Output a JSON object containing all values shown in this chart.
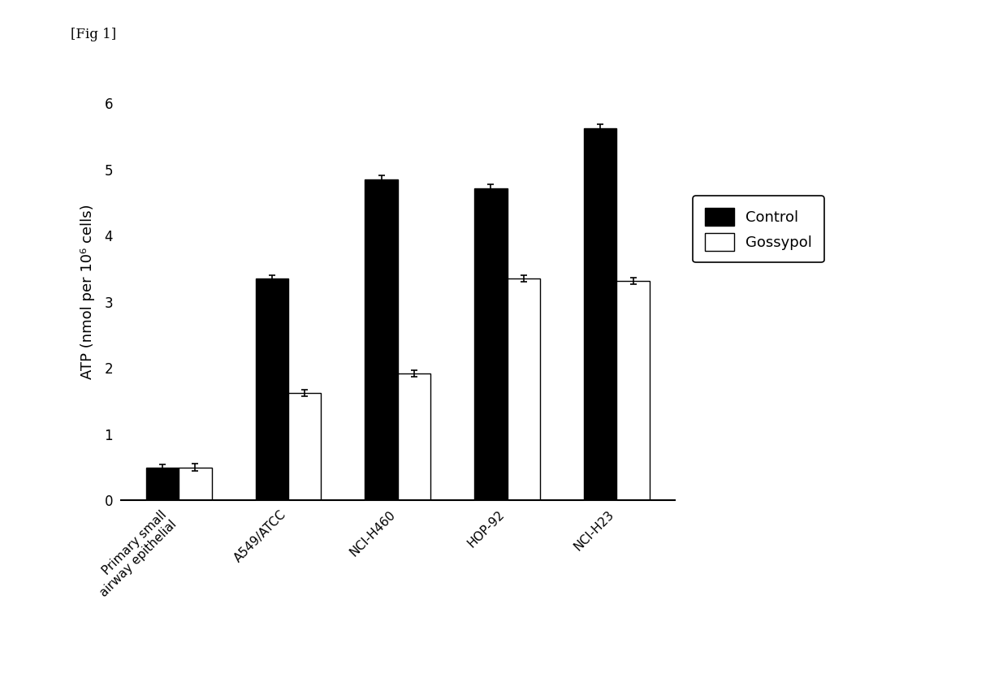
{
  "categories": [
    "Primary small\nairway epithelial",
    "A549/ATCC",
    "NCI-H460",
    "HOP-92",
    "NCI-H23"
  ],
  "control_values": [
    0.5,
    3.35,
    4.85,
    4.72,
    5.62
  ],
  "gossypol_values": [
    0.5,
    1.62,
    1.92,
    3.35,
    3.32
  ],
  "control_errors": [
    0.04,
    0.05,
    0.06,
    0.05,
    0.06
  ],
  "gossypol_errors": [
    0.05,
    0.05,
    0.05,
    0.05,
    0.05
  ],
  "ylabel": "ATP (nmol per 10⁶ cells)",
  "ylim": [
    0,
    6.3
  ],
  "yticks": [
    0,
    1,
    2,
    3,
    4,
    5,
    6
  ],
  "bar_width": 0.3,
  "control_color": "#000000",
  "gossypol_color": "#ffffff",
  "gossypol_edge_color": "#000000",
  "legend_labels": [
    "Control",
    "Gossypol"
  ],
  "fig_label": "[Fig 1]",
  "fig_width": 12.4,
  "fig_height": 8.56,
  "dpi": 100
}
